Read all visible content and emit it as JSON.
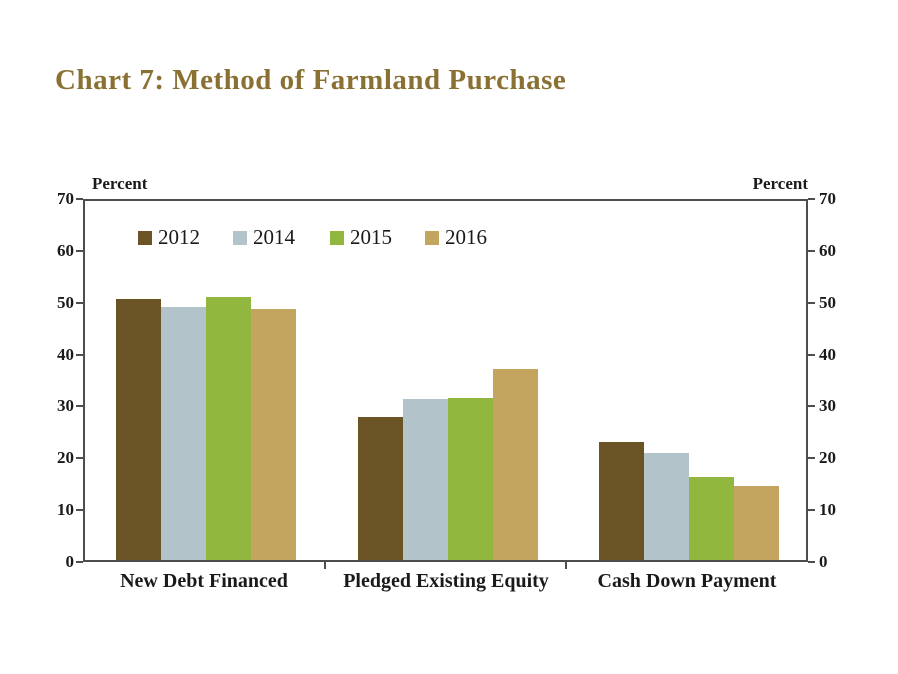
{
  "chart_data": {
    "type": "bar",
    "title": "Chart 7: Method of Farmland Purchase",
    "title_color": "#8a7133",
    "ylabel_left": "Percent",
    "ylabel_right": "Percent",
    "ylim": [
      0,
      70
    ],
    "ytick_step": 10,
    "grid": false,
    "legend_position": "top-left-inside",
    "categories": [
      "New Debt Financed",
      "Pledged Existing Equity",
      "Cash Down Payment"
    ],
    "series": [
      {
        "name": "2012",
        "color": "#6a5426",
        "values": [
          50.4,
          27.5,
          22.7
        ]
      },
      {
        "name": "2014",
        "color": "#b2c3c9",
        "values": [
          48.7,
          31.0,
          20.7
        ]
      },
      {
        "name": "2015",
        "color": "#92b73e",
        "values": [
          50.7,
          31.2,
          16.0
        ]
      },
      {
        "name": "2016",
        "color": "#c3a55f",
        "values": [
          48.4,
          36.8,
          14.3
        ]
      }
    ],
    "axis_color": "#4d4d4d",
    "text_color": "#1a1a1a"
  }
}
